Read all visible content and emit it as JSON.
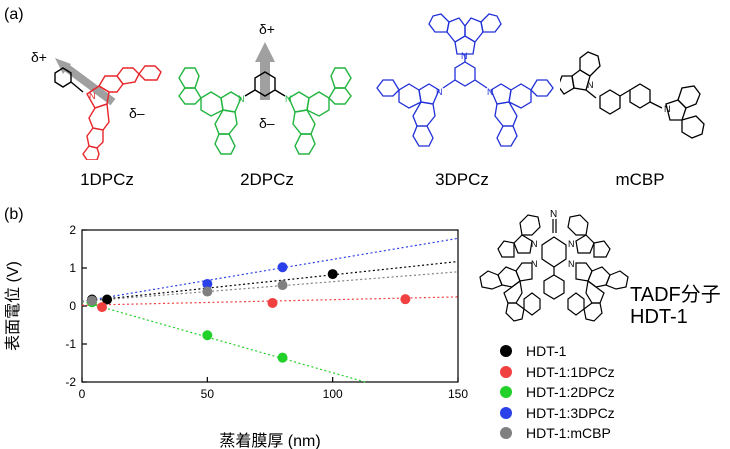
{
  "panel_a": {
    "label": "(a)",
    "molecules": [
      {
        "name": "1DPCz",
        "color": "#e8262a"
      },
      {
        "name": "2DPCz",
        "color": "#22b540"
      },
      {
        "name": "3DPCz",
        "color": "#2030d8"
      },
      {
        "name": "mCBP",
        "color": "#000000"
      }
    ],
    "delta_plus": "δ+",
    "delta_minus": "δ–"
  },
  "panel_b": {
    "label": "(b)",
    "tadf_label_line1": "TADF分子",
    "tadf_label_line2": "HDT-1",
    "nitrile_label": "N"
  },
  "chart_data": {
    "type": "scatter",
    "xlabel": "蒸着膜厚 (nm)",
    "ylabel": "表面電位 (V)",
    "xlim": [
      0,
      150
    ],
    "ylim": [
      -2,
      2
    ],
    "xticks": [
      0,
      50,
      100,
      150
    ],
    "yticks": [
      -2,
      -1,
      0,
      1,
      2
    ],
    "legend_placement": "right",
    "series": [
      {
        "name": "HDT-1",
        "color": "#000000",
        "x": [
          4,
          10,
          100
        ],
        "y": [
          0.17,
          0.17,
          0.84
        ],
        "fit": [
          [
            0,
            0.12
          ],
          [
            150,
            1.17
          ]
        ]
      },
      {
        "name": "HDT-1:1DPCz",
        "color": "#f04040",
        "x": [
          8,
          76,
          129
        ],
        "y": [
          -0.03,
          0.08,
          0.18
        ],
        "fit": [
          [
            0,
            0.02
          ],
          [
            150,
            0.24
          ]
        ]
      },
      {
        "name": "HDT-1:2DPCz",
        "color": "#22d02a",
        "x": [
          4,
          50,
          80
        ],
        "y": [
          0.1,
          -0.77,
          -1.36
        ],
        "fit": [
          [
            0,
            0.12
          ],
          [
            113,
            -2.0
          ]
        ]
      },
      {
        "name": "HDT-1:3DPCz",
        "color": "#2a40e8",
        "x": [
          50,
          80
        ],
        "y": [
          0.58,
          1.02
        ],
        "fit": [
          [
            0,
            0.12
          ],
          [
            150,
            1.78
          ]
        ]
      },
      {
        "name": "HDT-1:mCBP",
        "color": "#808080",
        "x": [
          4,
          50,
          80
        ],
        "y": [
          0.14,
          0.38,
          0.55
        ],
        "fit": [
          [
            0,
            0.12
          ],
          [
            150,
            0.9
          ]
        ]
      }
    ]
  }
}
